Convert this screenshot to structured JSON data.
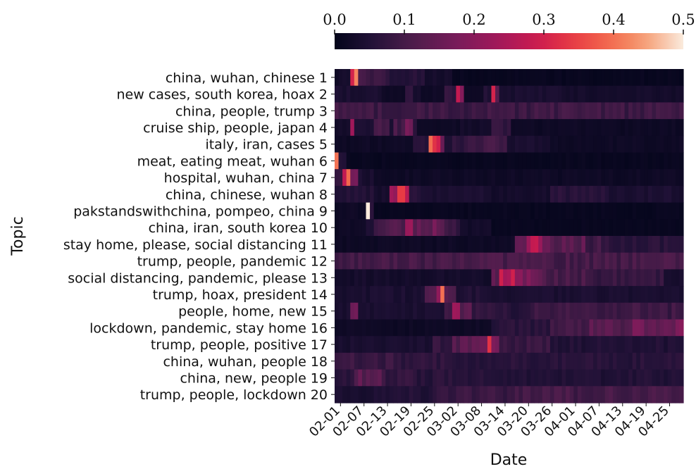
{
  "chart_data": {
    "type": "heatmap",
    "xlabel": "Date",
    "ylabel": "Topic",
    "colormap": "rocket",
    "colorbar": {
      "min": 0.0,
      "max": 0.5,
      "ticks": [
        "0.0",
        "0.1",
        "0.2",
        "0.3",
        "0.4",
        "0.5"
      ],
      "placement": "top"
    },
    "x_tick_labels": [
      "02-01",
      "02-07",
      "02-13",
      "02-19",
      "02-25",
      "03-02",
      "03-08",
      "03-14",
      "03-20",
      "03-26",
      "04-01",
      "04-07",
      "04-13",
      "04-19",
      "04-25"
    ],
    "rows": [
      {
        "label": "china, wuhan, chinese 1",
        "segments": [
          [
            0,
            4,
            0.03
          ],
          [
            4,
            6,
            0.36
          ],
          [
            6,
            13,
            0.1
          ],
          [
            13,
            23,
            0.06
          ],
          [
            23,
            30,
            0.03
          ],
          [
            30,
            89,
            0.01
          ]
        ]
      },
      {
        "label": "new cases, south korea, hoax 2",
        "segments": [
          [
            0,
            12,
            0.04
          ],
          [
            12,
            18,
            0.02
          ],
          [
            18,
            20,
            0.08
          ],
          [
            20,
            22,
            0.03
          ],
          [
            22,
            28,
            0.02
          ],
          [
            28,
            31,
            0.08
          ],
          [
            31,
            32,
            0.33
          ],
          [
            32,
            33,
            0.2
          ],
          [
            33,
            38,
            0.02
          ],
          [
            38,
            40,
            0.05
          ],
          [
            40,
            41,
            0.25
          ],
          [
            41,
            42,
            0.12
          ],
          [
            42,
            58,
            0.04
          ],
          [
            58,
            89,
            0.03
          ]
        ]
      },
      {
        "label": "china, people, trump 3",
        "segments": [
          [
            0,
            89,
            0.09
          ]
        ]
      },
      {
        "label": "cruise ship, people, japan 4",
        "segments": [
          [
            0,
            4,
            0.03
          ],
          [
            4,
            5,
            0.3
          ],
          [
            5,
            10,
            0.04
          ],
          [
            10,
            14,
            0.1
          ],
          [
            14,
            15,
            0.04
          ],
          [
            15,
            18,
            0.1
          ],
          [
            18,
            20,
            0.2
          ],
          [
            20,
            21,
            0.08
          ],
          [
            21,
            32,
            0.02
          ],
          [
            32,
            40,
            0.03
          ],
          [
            40,
            45,
            0.07
          ],
          [
            45,
            89,
            0.02
          ]
        ]
      },
      {
        "label": "italy, iran, cases 5",
        "segments": [
          [
            0,
            20,
            0.02
          ],
          [
            20,
            24,
            0.06
          ],
          [
            24,
            25,
            0.35
          ],
          [
            25,
            26,
            0.38
          ],
          [
            26,
            27,
            0.3
          ],
          [
            27,
            28,
            0.15
          ],
          [
            28,
            30,
            0.05
          ],
          [
            30,
            34,
            0.07
          ],
          [
            34,
            40,
            0.09
          ],
          [
            40,
            44,
            0.1
          ],
          [
            44,
            55,
            0.04
          ],
          [
            55,
            89,
            0.02
          ]
        ]
      },
      {
        "label": "meat, eating meat, wuhan 6",
        "segments": [
          [
            0,
            1,
            0.48
          ],
          [
            1,
            3,
            0.05
          ],
          [
            3,
            89,
            0.01
          ]
        ]
      },
      {
        "label": "hospital, wuhan, china 7",
        "segments": [
          [
            0,
            2,
            0.07
          ],
          [
            2,
            4,
            0.35
          ],
          [
            4,
            6,
            0.18
          ],
          [
            6,
            10,
            0.04
          ],
          [
            10,
            89,
            0.02
          ]
        ]
      },
      {
        "label": "china, chinese, wuhan 8",
        "segments": [
          [
            0,
            10,
            0.05
          ],
          [
            10,
            14,
            0.03
          ],
          [
            14,
            16,
            0.2
          ],
          [
            16,
            18,
            0.32
          ],
          [
            18,
            19,
            0.22
          ],
          [
            19,
            22,
            0.06
          ],
          [
            22,
            40,
            0.04
          ],
          [
            40,
            55,
            0.03
          ],
          [
            55,
            70,
            0.06
          ],
          [
            70,
            89,
            0.04
          ]
        ]
      },
      {
        "label": "pakstandswithchina, pompeo, china 9",
        "segments": [
          [
            0,
            8,
            0.02
          ],
          [
            8,
            9,
            0.48
          ],
          [
            9,
            10,
            0.08
          ],
          [
            10,
            89,
            0.01
          ]
        ]
      },
      {
        "label": "china, iran, south korea 10",
        "segments": [
          [
            0,
            8,
            0.02
          ],
          [
            8,
            10,
            0.05
          ],
          [
            10,
            14,
            0.1
          ],
          [
            14,
            18,
            0.12
          ],
          [
            18,
            20,
            0.25
          ],
          [
            20,
            23,
            0.13
          ],
          [
            23,
            28,
            0.15
          ],
          [
            28,
            32,
            0.08
          ],
          [
            32,
            40,
            0.03
          ],
          [
            40,
            89,
            0.01
          ]
        ]
      },
      {
        "label": "stay home, please, social distancing 11",
        "segments": [
          [
            0,
            46,
            0.02
          ],
          [
            46,
            49,
            0.13
          ],
          [
            49,
            53,
            0.24
          ],
          [
            53,
            56,
            0.15
          ],
          [
            56,
            64,
            0.13
          ],
          [
            64,
            70,
            0.09
          ],
          [
            70,
            89,
            0.06
          ]
        ]
      },
      {
        "label": "trump, people, pandemic 12",
        "segments": [
          [
            0,
            89,
            0.1
          ]
        ]
      },
      {
        "label": "social distancing, pandemic, please 13",
        "segments": [
          [
            0,
            40,
            0.03
          ],
          [
            40,
            42,
            0.12
          ],
          [
            42,
            46,
            0.26
          ],
          [
            46,
            50,
            0.2
          ],
          [
            50,
            54,
            0.14
          ],
          [
            54,
            64,
            0.1
          ],
          [
            64,
            84,
            0.08
          ],
          [
            84,
            89,
            0.04
          ]
        ]
      },
      {
        "label": "trump, hoax, president 14",
        "segments": [
          [
            0,
            23,
            0.04
          ],
          [
            23,
            26,
            0.13
          ],
          [
            26,
            27,
            0.23
          ],
          [
            27,
            28,
            0.4
          ],
          [
            28,
            31,
            0.12
          ],
          [
            31,
            40,
            0.05
          ],
          [
            40,
            89,
            0.04
          ]
        ]
      },
      {
        "label": "people, home, new 15",
        "segments": [
          [
            0,
            4,
            0.04
          ],
          [
            4,
            6,
            0.15
          ],
          [
            6,
            28,
            0.04
          ],
          [
            28,
            30,
            0.1
          ],
          [
            30,
            32,
            0.2
          ],
          [
            32,
            35,
            0.12
          ],
          [
            35,
            40,
            0.08
          ],
          [
            40,
            50,
            0.06
          ],
          [
            50,
            89,
            0.09
          ]
        ]
      },
      {
        "label": "lockdown, pandemic, stay home 16",
        "segments": [
          [
            0,
            40,
            0.02
          ],
          [
            40,
            55,
            0.06
          ],
          [
            55,
            65,
            0.1
          ],
          [
            65,
            75,
            0.12
          ],
          [
            75,
            89,
            0.16
          ]
        ]
      },
      {
        "label": "trump, people, positive 17",
        "segments": [
          [
            0,
            25,
            0.04
          ],
          [
            25,
            30,
            0.08
          ],
          [
            30,
            35,
            0.13
          ],
          [
            35,
            39,
            0.18
          ],
          [
            39,
            40,
            0.28
          ],
          [
            40,
            42,
            0.15
          ],
          [
            42,
            55,
            0.08
          ],
          [
            55,
            89,
            0.05
          ]
        ]
      },
      {
        "label": "china, wuhan, people 18",
        "segments": [
          [
            0,
            15,
            0.08
          ],
          [
            15,
            30,
            0.07
          ],
          [
            30,
            60,
            0.06
          ],
          [
            60,
            89,
            0.06
          ]
        ]
      },
      {
        "label": "china, new, people 19",
        "segments": [
          [
            0,
            5,
            0.07
          ],
          [
            5,
            12,
            0.13
          ],
          [
            12,
            20,
            0.08
          ],
          [
            20,
            40,
            0.06
          ],
          [
            40,
            89,
            0.05
          ]
        ]
      },
      {
        "label": "trump, people, lockdown 20",
        "segments": [
          [
            0,
            10,
            0.04
          ],
          [
            10,
            25,
            0.05
          ],
          [
            25,
            45,
            0.08
          ],
          [
            45,
            89,
            0.1
          ]
        ]
      }
    ]
  }
}
